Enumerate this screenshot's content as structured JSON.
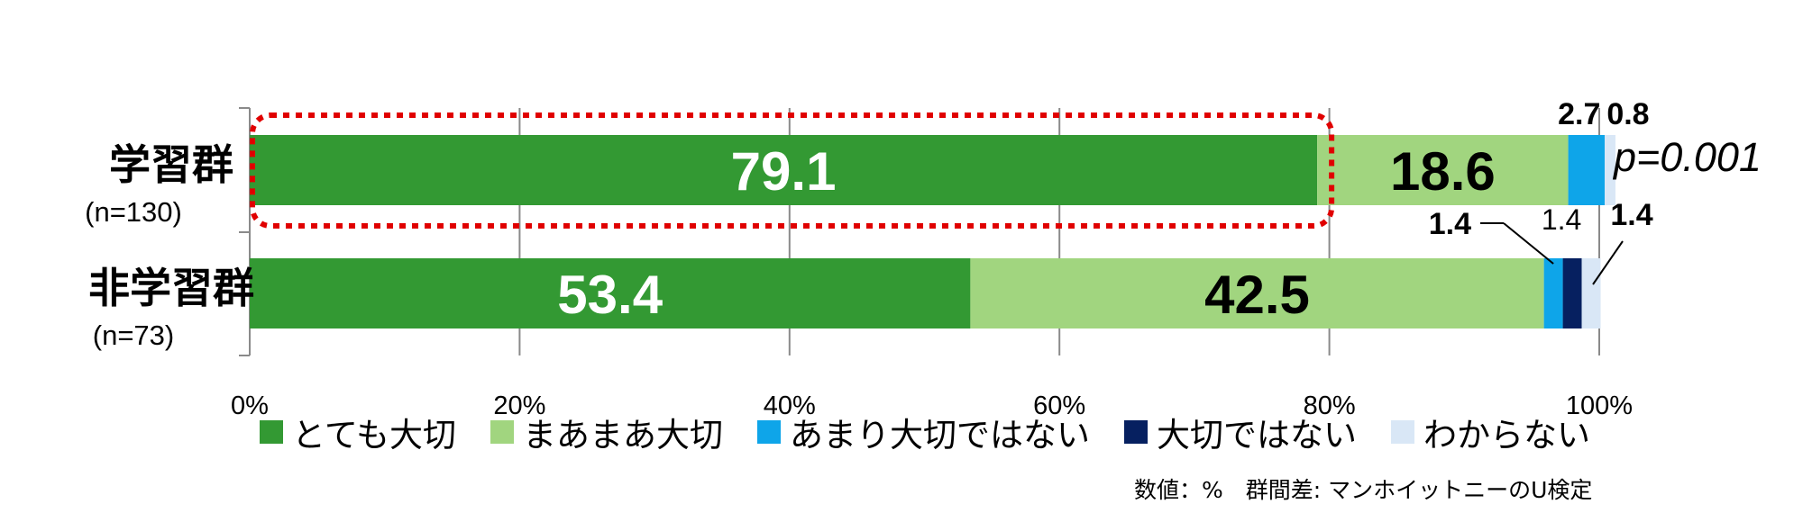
{
  "chart_data": {
    "type": "bar",
    "orientation": "horizontal",
    "stacked": true,
    "x_range": [
      0,
      100
    ],
    "grid": true,
    "x_ticks": [
      "0%",
      "20%",
      "40%",
      "60%",
      "80%",
      "100%"
    ],
    "x_tick_values": [
      0,
      20,
      40,
      60,
      80,
      100
    ],
    "categories": [
      {
        "name": "学習群",
        "n": "(n=130)"
      },
      {
        "name": "非学習群",
        "n": "(n=73)"
      }
    ],
    "series": [
      {
        "name": "とても大切",
        "color": "#339933",
        "values": [
          79.1,
          53.4
        ],
        "labels": [
          "79.1",
          "53.4"
        ]
      },
      {
        "name": "まあまあ大切",
        "color": "#a1d57f",
        "values": [
          18.6,
          42.5
        ],
        "labels": [
          "18.6",
          "42.5"
        ]
      },
      {
        "name": "あまり大切ではない",
        "color": "#0ea5e9",
        "values": [
          2.7,
          1.4
        ],
        "labels": [
          "2.7",
          "1.4"
        ]
      },
      {
        "name": "大切ではない",
        "color": "#062060",
        "values": [
          0,
          1.4
        ],
        "labels": [
          "",
          "1.4"
        ]
      },
      {
        "name": "わからない",
        "color": "#d9e7f6",
        "values": [
          0.8,
          1.4
        ],
        "labels": [
          "0.8",
          "1.4"
        ]
      }
    ],
    "annotation": "p=0.001",
    "legend_position": "bottom",
    "highlight": "red dotted rounded box around 学習群 とても大切 segment"
  },
  "footnote": "数値：%　群間差: マンホイットニーのU検定"
}
